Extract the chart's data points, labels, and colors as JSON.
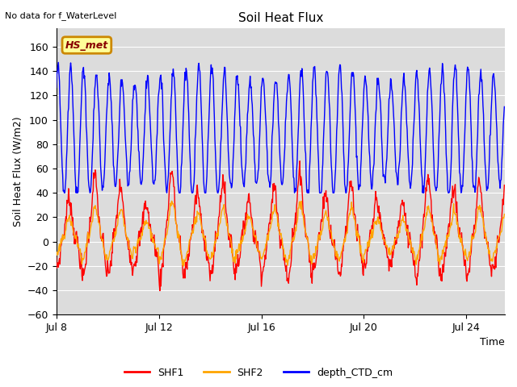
{
  "title": "Soil Heat Flux",
  "top_left_text": "No data for f_WaterLevel",
  "ylabel": "Soil Heat Flux (W/m2)",
  "xlabel": "Time",
  "legend_box_label": "HS_met",
  "legend_box_color": "#ffff99",
  "legend_box_border": "#cc8800",
  "legend_box_text_color": "#880000",
  "ylim": [
    -60,
    175
  ],
  "yticks": [
    -60,
    -40,
    -20,
    0,
    20,
    40,
    60,
    80,
    100,
    120,
    140,
    160
  ],
  "xtick_labels": [
    "Jul 8",
    "Jul 12",
    "Jul 16",
    "Jul 20",
    "Jul 24"
  ],
  "xtick_positions": [
    0,
    4,
    8,
    12,
    16
  ],
  "xlim": [
    0,
    17.5
  ],
  "plot_bg_color": "#dcdcdc",
  "fig_bg_color": "#ffffff",
  "grid_color": "#ffffff",
  "shf1_color": "#ff0000",
  "shf2_color": "#ffa500",
  "depth_color": "#0000ff",
  "line_width": 1.0,
  "legend_entries": [
    "SHF1",
    "SHF2",
    "depth_CTD_cm"
  ],
  "legend_colors": [
    "#ff0000",
    "#ffa500",
    "#0000ff"
  ]
}
